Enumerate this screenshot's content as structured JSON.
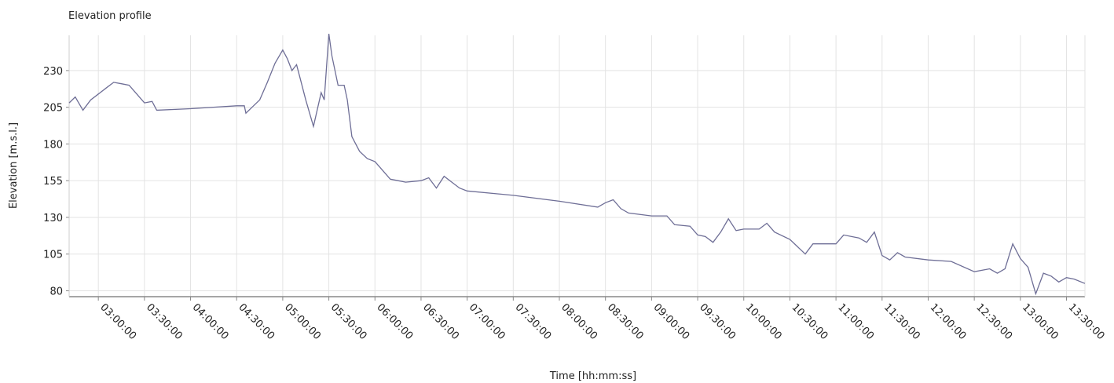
{
  "chart_data": {
    "type": "line",
    "title": "Elevation profile",
    "x_label": "Time  [hh:mm:ss]",
    "y_label": "Elevation [m.s.l.]",
    "x": [
      "02:41:00",
      "02:45:00",
      "02:50:00",
      "02:55:00",
      "03:00:00",
      "03:05:00",
      "03:10:00",
      "03:15:00",
      "03:20:00",
      "03:25:00",
      "03:30:00",
      "03:35:00",
      "03:38:00",
      "04:00:00",
      "04:30:00",
      "04:35:00",
      "04:36:00",
      "04:40:00",
      "04:45:00",
      "04:50:00",
      "04:55:00",
      "05:00:00",
      "05:03:00",
      "05:06:00",
      "05:09:00",
      "05:12:00",
      "05:15:00",
      "05:20:00",
      "05:25:00",
      "05:27:00",
      "05:30:00",
      "05:32:00",
      "05:36:00",
      "05:40:00",
      "05:42:00",
      "05:45:00",
      "05:50:00",
      "05:55:00",
      "06:00:00",
      "06:05:00",
      "06:10:00",
      "06:15:00",
      "06:20:00",
      "06:30:00",
      "06:35:00",
      "06:40:00",
      "06:45:00",
      "06:50:00",
      "06:55:00",
      "07:00:00",
      "07:30:00",
      "08:00:00",
      "08:25:00",
      "08:30:00",
      "08:35:00",
      "08:40:00",
      "08:45:00",
      "09:00:00",
      "09:10:00",
      "09:15:00",
      "09:25:00",
      "09:30:00",
      "09:35:00",
      "09:40:00",
      "09:45:00",
      "09:50:00",
      "09:55:00",
      "10:00:00",
      "10:10:00",
      "10:15:00",
      "10:20:00",
      "10:30:00",
      "10:40:00",
      "10:45:00",
      "11:00:00",
      "11:05:00",
      "11:15:00",
      "11:20:00",
      "11:25:00",
      "11:30:00",
      "11:35:00",
      "11:40:00",
      "11:45:00",
      "12:00:00",
      "12:15:00",
      "12:30:00",
      "12:40:00",
      "12:45:00",
      "12:50:00",
      "12:55:00",
      "13:00:00",
      "13:05:00",
      "13:10:00",
      "13:15:00",
      "13:20:00",
      "13:25:00",
      "13:30:00",
      "13:35:00",
      "13:42:00"
    ],
    "series": [
      {
        "name": "Elevation",
        "color": "#6e6e96",
        "values": [
          208,
          212,
          203,
          210,
          214,
          218,
          222,
          221,
          220,
          214,
          208,
          209,
          203,
          204,
          206,
          206,
          201,
          205,
          210,
          222,
          235,
          244,
          238,
          230,
          234,
          222,
          210,
          192,
          215,
          210,
          255,
          240,
          220,
          220,
          210,
          185,
          175,
          170,
          168,
          162,
          156,
          155,
          154,
          155,
          157,
          150,
          158,
          154,
          150,
          148,
          145,
          141,
          137,
          140,
          142,
          136,
          133,
          131,
          131,
          125,
          124,
          118,
          117,
          113,
          120,
          129,
          121,
          122,
          122,
          126,
          120,
          115,
          105,
          112,
          112,
          118,
          116,
          113,
          120,
          104,
          101,
          106,
          103,
          101,
          100,
          93,
          95,
          92,
          95,
          112,
          102,
          96,
          78,
          92,
          90,
          86,
          89,
          88,
          85
        ]
      }
    ],
    "xlim": [
      "02:41:00",
      "13:42:00"
    ],
    "xticks": [
      "03:00:00",
      "03:30:00",
      "04:00:00",
      "04:30:00",
      "05:00:00",
      "05:30:00",
      "06:00:00",
      "06:30:00",
      "07:00:00",
      "07:30:00",
      "08:00:00",
      "08:30:00",
      "09:00:00",
      "09:30:00",
      "10:00:00",
      "10:30:00",
      "11:00:00",
      "11:30:00",
      "12:00:00",
      "12:30:00",
      "13:00:00",
      "13:30:00"
    ],
    "ylim": [
      76,
      254
    ],
    "yticks": [
      80,
      105,
      130,
      155,
      180,
      205,
      230
    ],
    "grid": true
  }
}
